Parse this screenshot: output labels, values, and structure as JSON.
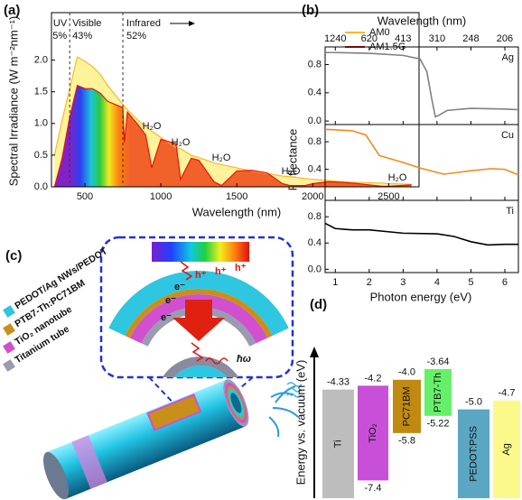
{
  "panel_labels": [
    "(a)",
    "(b)",
    "(c)",
    "(d)"
  ],
  "chart_data": [
    {
      "type": "area",
      "xlabel": "Wavelength (nm)",
      "ylabel": "Spectral Irradiance (W m⁻²nm⁻¹)",
      "xlim": [
        280,
        2700
      ],
      "ylim": [
        0,
        2.75
      ],
      "xticks": [
        500,
        1000,
        1500,
        2000,
        2500
      ],
      "yticks": [
        {
          "value": 0,
          "label": "0.0"
        },
        0.5,
        {
          "value": 1,
          "label": "1.0"
        },
        1.5,
        {
          "value": 2,
          "label": "2.0"
        }
      ],
      "x": [
        300,
        350,
        400,
        450,
        500,
        550,
        600,
        650,
        700,
        750,
        760,
        780,
        850,
        900,
        940,
        1000,
        1100,
        1130,
        1200,
        1250,
        1350,
        1400,
        1500,
        1600,
        1700,
        1800,
        1850,
        1950,
        2000,
        2100,
        2200,
        2300,
        2450,
        2500,
        2650
      ],
      "series": [
        {
          "name": "AM0",
          "color": "#f5b82e",
          "fill": "#fcf39a",
          "values": [
            0.5,
            1.05,
            1.55,
            2.05,
            1.98,
            1.9,
            1.78,
            1.6,
            1.45,
            1.3,
            1.27,
            1.22,
            1.05,
            0.95,
            0.88,
            0.78,
            0.62,
            0.6,
            0.5,
            0.46,
            0.38,
            0.35,
            0.3,
            0.25,
            0.21,
            0.17,
            0.16,
            0.13,
            0.12,
            0.1,
            0.08,
            0.07,
            0.06,
            0.05,
            0.04
          ]
        },
        {
          "name": "AM1.5G",
          "color": "#e3170a",
          "fill": "#f0622a",
          "values": [
            0,
            0.45,
            1.1,
            1.6,
            1.55,
            1.55,
            1.48,
            1.35,
            1.3,
            1.25,
            0.7,
            1.18,
            0.98,
            0.82,
            0.3,
            0.75,
            0.68,
            0.12,
            0.45,
            0.42,
            0.08,
            0.02,
            0.25,
            0.26,
            0.22,
            0.05,
            0.02,
            0.02,
            0.05,
            0.08,
            0.07,
            0.05,
            0.01,
            0.01,
            0.03
          ]
        }
      ],
      "legend": "upper right",
      "dividers": [
        400,
        750
      ],
      "annotations": [
        "UV",
        "5%",
        "Visible",
        "43%",
        "Infrared",
        "52%",
        "H₂O",
        "H₂O",
        "H₂O",
        "H₂O",
        "H₂O"
      ]
    },
    {
      "type": "line",
      "xlabel": "Photon energy (eV)",
      "x2label": "Wavelength (nm)",
      "ylabel": "Reflectance",
      "xlim": [
        0.7,
        6.4
      ],
      "xticks": [
        1,
        2,
        3,
        4,
        5,
        6
      ],
      "x2ticks": [
        {
          "value": 1,
          "label": "1240"
        },
        {
          "value": 2,
          "label": "620"
        },
        {
          "value": 3,
          "label": "413"
        },
        {
          "value": 4,
          "label": "310"
        },
        {
          "value": 5,
          "label": "248"
        },
        {
          "value": 6,
          "label": "206"
        }
      ],
      "panels": [
        {
          "name": "Ag",
          "color": "#808080",
          "ylim": [
            -0.05,
            1.05
          ],
          "yticks": [
            {
              "value": 0,
              "label": "0.0"
            },
            0.4,
            0.8
          ],
          "x": [
            0.7,
            1,
            2,
            3,
            3.5,
            3.7,
            3.85,
            3.95,
            4.05,
            4.3,
            5,
            6,
            6.4
          ],
          "values": [
            0.97,
            0.97,
            0.96,
            0.93,
            0.88,
            0.7,
            0.3,
            0.06,
            0.08,
            0.15,
            0.18,
            0.17,
            0.16
          ]
        },
        {
          "name": "Cu",
          "color": "#f08a1c",
          "ylim": [
            -0.05,
            1.05
          ],
          "yticks": [
            0.4,
            0.8
          ],
          "x": [
            0.7,
            1.5,
            1.9,
            2.1,
            2.3,
            3,
            3.5,
            4.2,
            5,
            5.6,
            6,
            6.4
          ],
          "values": [
            0.98,
            0.96,
            0.9,
            0.75,
            0.6,
            0.5,
            0.42,
            0.33,
            0.38,
            0.41,
            0.4,
            0.32
          ]
        },
        {
          "name": "Ti",
          "color": "#000000",
          "ylim": [
            -0.05,
            1.05
          ],
          "yticks": [
            {
              "value": 0,
              "label": "0.0"
            },
            0.4,
            0.8
          ],
          "x": [
            0.7,
            1,
            1.5,
            2,
            3,
            4,
            4.5,
            5,
            5.5,
            6,
            6.4
          ],
          "values": [
            0.7,
            0.62,
            0.6,
            0.6,
            0.55,
            0.54,
            0.5,
            0.42,
            0.37,
            0.38,
            0.38
          ]
        }
      ]
    },
    {
      "type": "energy_levels",
      "ylabel": "Energy vs. vacuum (eV)",
      "ylim": [
        -8,
        -3
      ],
      "categories": [
        "Ti",
        "TiO₂",
        "PC71BM",
        "PTB7-Th",
        "PEDOT:PSS",
        "Ag"
      ],
      "colors": [
        "#bdbdbd",
        "#c850d8",
        "#c08a10",
        "#66f06a",
        "#5ba6c2",
        "#fbf98a"
      ],
      "values": [
        -4.33,
        -4.2,
        -4.0,
        -3.64,
        -5.0,
        -4.7
      ],
      "value_labels": [
        "-4.33",
        "-4.2",
        "-4.0",
        "-3.64",
        "-5.0",
        "-4.7"
      ],
      "bottoms": [
        null,
        -7.4,
        -5.8,
        -5.22,
        null,
        null
      ],
      "bottom_labels": [
        null,
        "-7.4",
        "-5.8",
        "-5.22",
        null,
        null
      ]
    }
  ],
  "diagram": {
    "legend": [
      "PEDOT/Ag NWs/PEDOT",
      "PTB7-Th:PC71BM",
      "TiO₂ nanotube",
      "Titanium tube"
    ],
    "labels": [
      "e⁻",
      "e⁻",
      "e⁻",
      "h⁺",
      "h⁺",
      "h⁺",
      "ħω"
    ]
  }
}
